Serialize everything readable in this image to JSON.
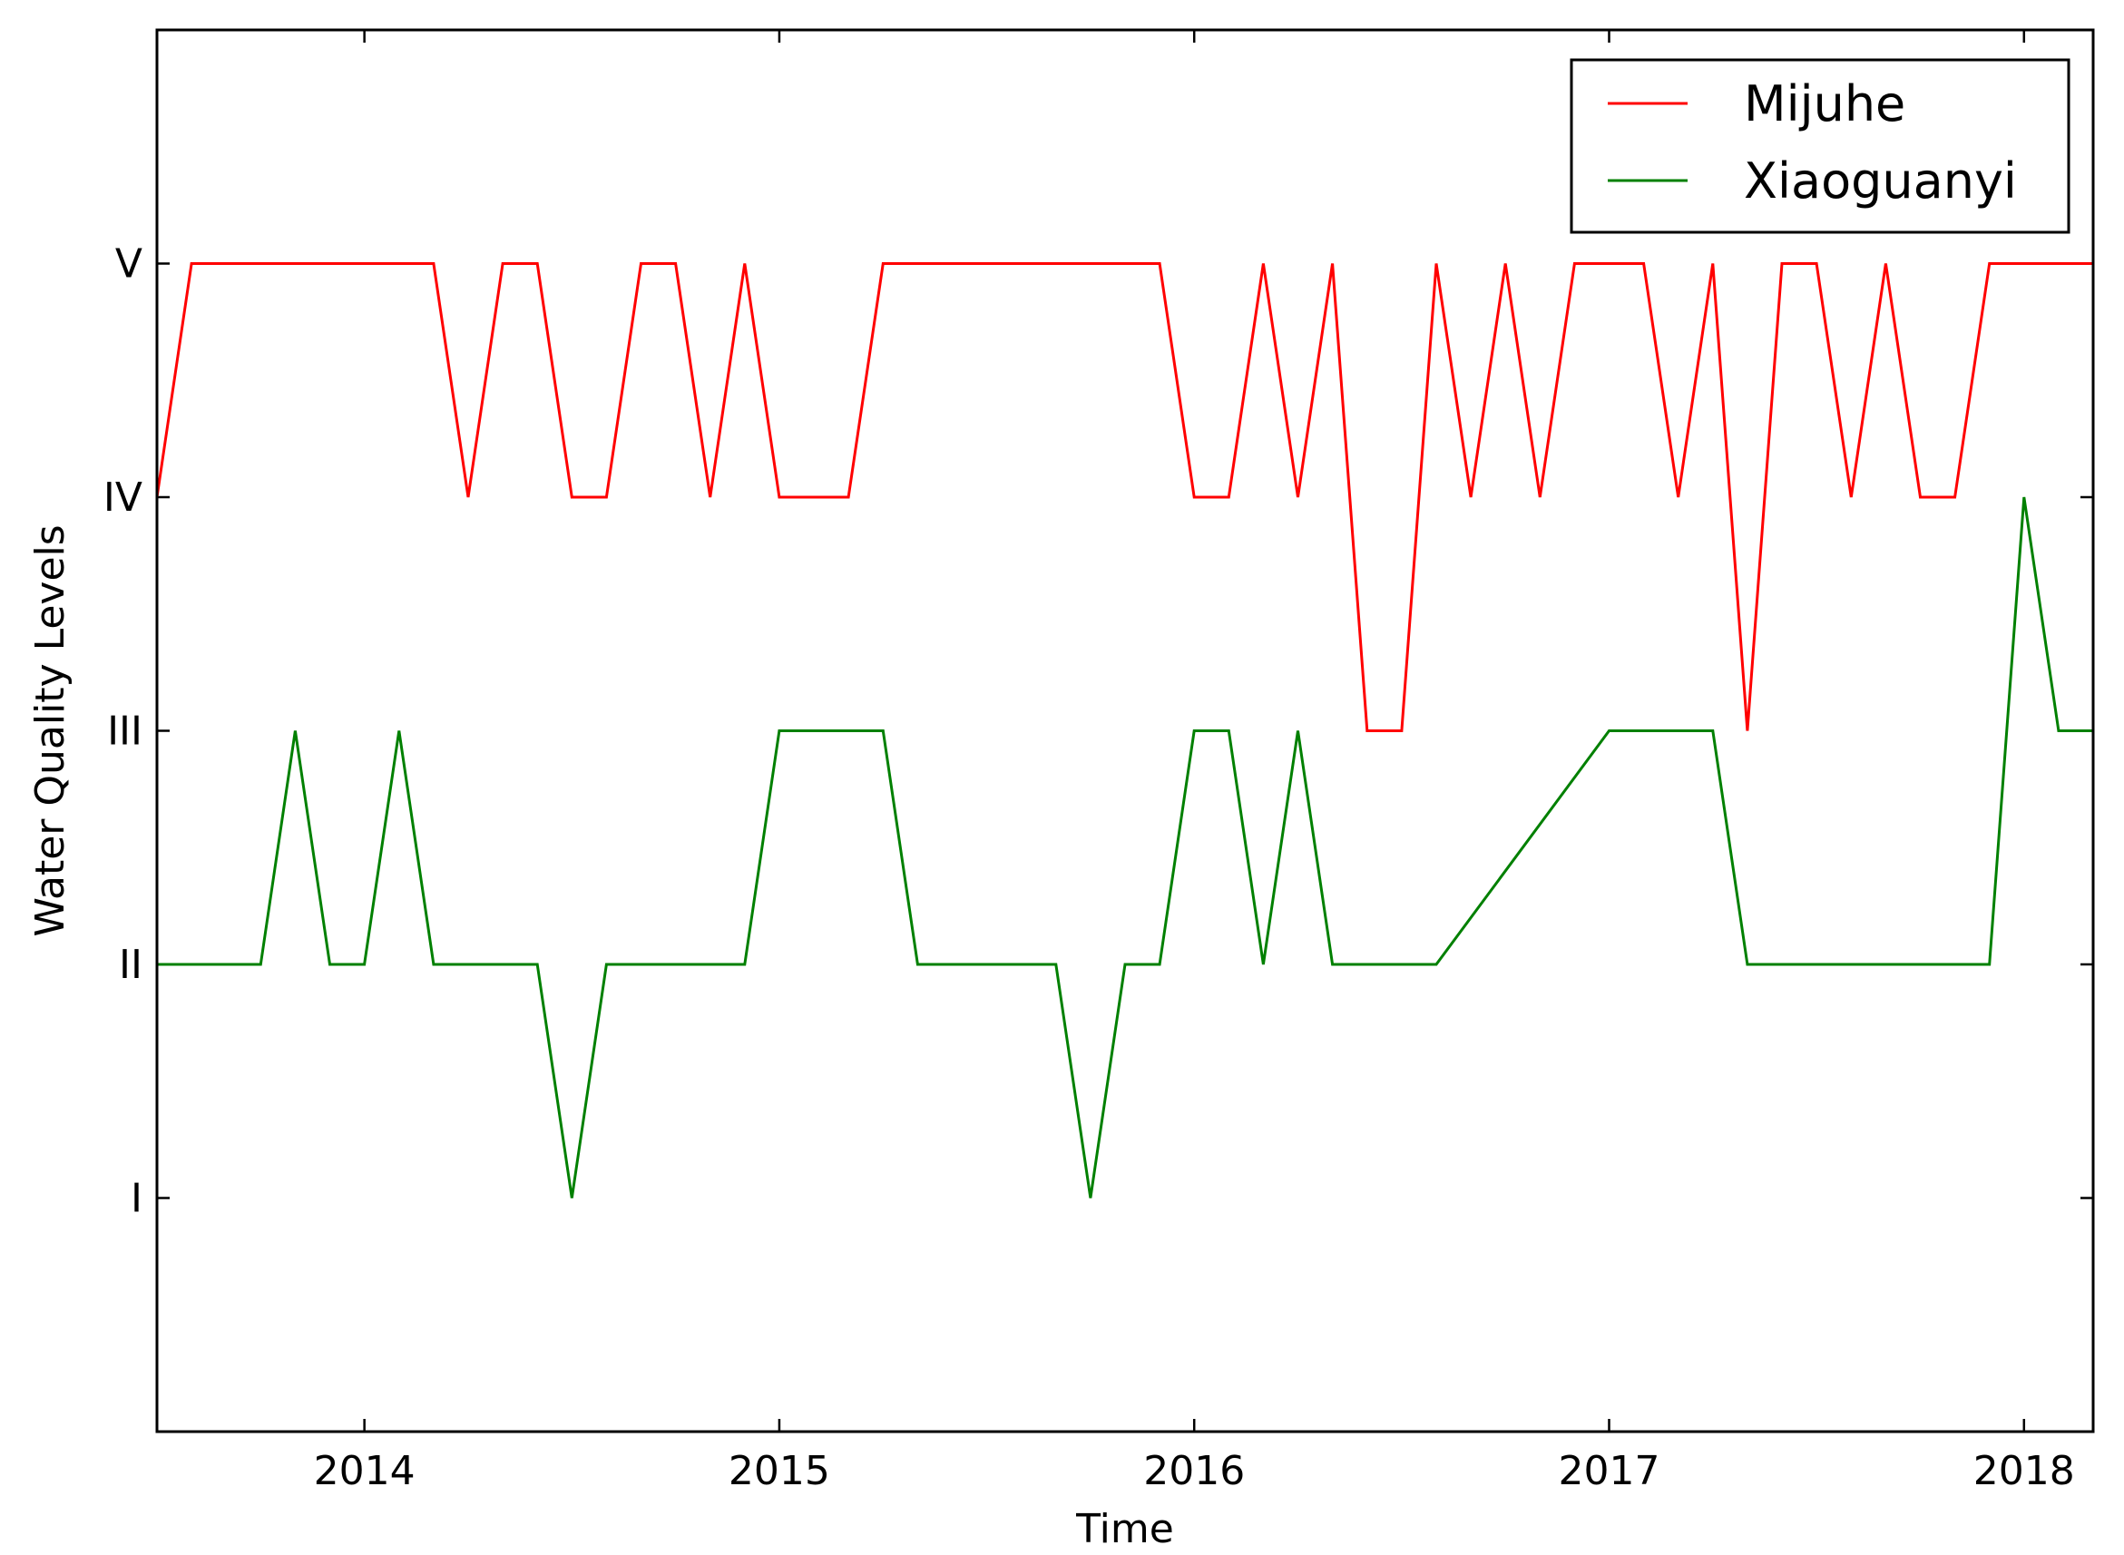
{
  "chart_data": {
    "type": "line",
    "xlabel": "Time",
    "ylabel": "Water Quality Levels",
    "x_ticks": [
      "2014",
      "2015",
      "2016",
      "2017",
      "2018"
    ],
    "y_ticks": [
      "I",
      "II",
      "III",
      "IV",
      "V"
    ],
    "xlim": [
      "2013-07",
      "2018-03"
    ],
    "ylim": [
      0,
      6
    ],
    "grid": false,
    "legend_position": "top-right",
    "series": [
      {
        "name": "Mijuhe",
        "color": "#ff0000",
        "points": [
          [
            "2013-07",
            4
          ],
          [
            "2013-08",
            5
          ],
          [
            "2013-09",
            5
          ],
          [
            "2013-10",
            5
          ],
          [
            "2013-11",
            5
          ],
          [
            "2013-12",
            5
          ],
          [
            "2014-01",
            5
          ],
          [
            "2014-02",
            5
          ],
          [
            "2014-03",
            5
          ],
          [
            "2014-04",
            4
          ],
          [
            "2014-05",
            5
          ],
          [
            "2014-06",
            5
          ],
          [
            "2014-07",
            4
          ],
          [
            "2014-08",
            4
          ],
          [
            "2014-09",
            5
          ],
          [
            "2014-10",
            5
          ],
          [
            "2014-11",
            4
          ],
          [
            "2014-12",
            5
          ],
          [
            "2015-01",
            4
          ],
          [
            "2015-02",
            4
          ],
          [
            "2015-03",
            4
          ],
          [
            "2015-04",
            5
          ],
          [
            "2015-05",
            5
          ],
          [
            "2015-06",
            5
          ],
          [
            "2015-07",
            5
          ],
          [
            "2015-08",
            5
          ],
          [
            "2015-09",
            5
          ],
          [
            "2015-10",
            5
          ],
          [
            "2015-11",
            5
          ],
          [
            "2015-12",
            5
          ],
          [
            "2016-01",
            4
          ],
          [
            "2016-02",
            4
          ],
          [
            "2016-03",
            5
          ],
          [
            "2016-04",
            4
          ],
          [
            "2016-05",
            5
          ],
          [
            "2016-06",
            3
          ],
          [
            "2016-07",
            3
          ],
          [
            "2016-08",
            5
          ],
          [
            "2016-09",
            4
          ],
          [
            "2016-10",
            5
          ],
          [
            "2016-11",
            4
          ],
          [
            "2016-12",
            5
          ],
          [
            "2017-01",
            5
          ],
          [
            "2017-02",
            5
          ],
          [
            "2017-03",
            4
          ],
          [
            "2017-04",
            5
          ],
          [
            "2017-05",
            3
          ],
          [
            "2017-06",
            5
          ],
          [
            "2017-07",
            5
          ],
          [
            "2017-08",
            4
          ],
          [
            "2017-09",
            5
          ],
          [
            "2017-10",
            4
          ],
          [
            "2017-11",
            4
          ],
          [
            "2017-12",
            5
          ],
          [
            "2018-01",
            5
          ],
          [
            "2018-02",
            5
          ],
          [
            "2018-03",
            5
          ]
        ]
      },
      {
        "name": "Xiaoguanyi",
        "color": "#008000",
        "points": [
          [
            "2013-07",
            2
          ],
          [
            "2013-08",
            2
          ],
          [
            "2013-09",
            2
          ],
          [
            "2013-10",
            2
          ],
          [
            "2013-11",
            3
          ],
          [
            "2013-12",
            2
          ],
          [
            "2014-01",
            2
          ],
          [
            "2014-02",
            3
          ],
          [
            "2014-03",
            2
          ],
          [
            "2014-04",
            2
          ],
          [
            "2014-05",
            2
          ],
          [
            "2014-06",
            2
          ],
          [
            "2014-07",
            1
          ],
          [
            "2014-08",
            2
          ],
          [
            "2014-09",
            2
          ],
          [
            "2014-10",
            2
          ],
          [
            "2014-11",
            2
          ],
          [
            "2014-12",
            2
          ],
          [
            "2015-01",
            3
          ],
          [
            "2015-02",
            3
          ],
          [
            "2015-03",
            3
          ],
          [
            "2015-04",
            3
          ],
          [
            "2015-05",
            2
          ],
          [
            "2015-06",
            2
          ],
          [
            "2015-07",
            2
          ],
          [
            "2015-08",
            2
          ],
          [
            "2015-09",
            2
          ],
          [
            "2015-10",
            1
          ],
          [
            "2015-11",
            2
          ],
          [
            "2015-12",
            2
          ],
          [
            "2016-01",
            3
          ],
          [
            "2016-02",
            3
          ],
          [
            "2016-03",
            2
          ],
          [
            "2016-04",
            3
          ],
          [
            "2016-05",
            2
          ],
          [
            "2016-06",
            2
          ],
          [
            "2016-07",
            2
          ],
          [
            "2016-08",
            2
          ],
          [
            "2017-01",
            3
          ],
          [
            "2017-02",
            3
          ],
          [
            "2017-03",
            3
          ],
          [
            "2017-04",
            3
          ],
          [
            "2017-05",
            2
          ],
          [
            "2017-06",
            2
          ],
          [
            "2017-07",
            2
          ],
          [
            "2017-08",
            2
          ],
          [
            "2017-09",
            2
          ],
          [
            "2017-10",
            2
          ],
          [
            "2017-11",
            2
          ],
          [
            "2017-12",
            2
          ],
          [
            "2018-01",
            4
          ],
          [
            "2018-02",
            3
          ],
          [
            "2018-03",
            3
          ]
        ]
      }
    ]
  }
}
